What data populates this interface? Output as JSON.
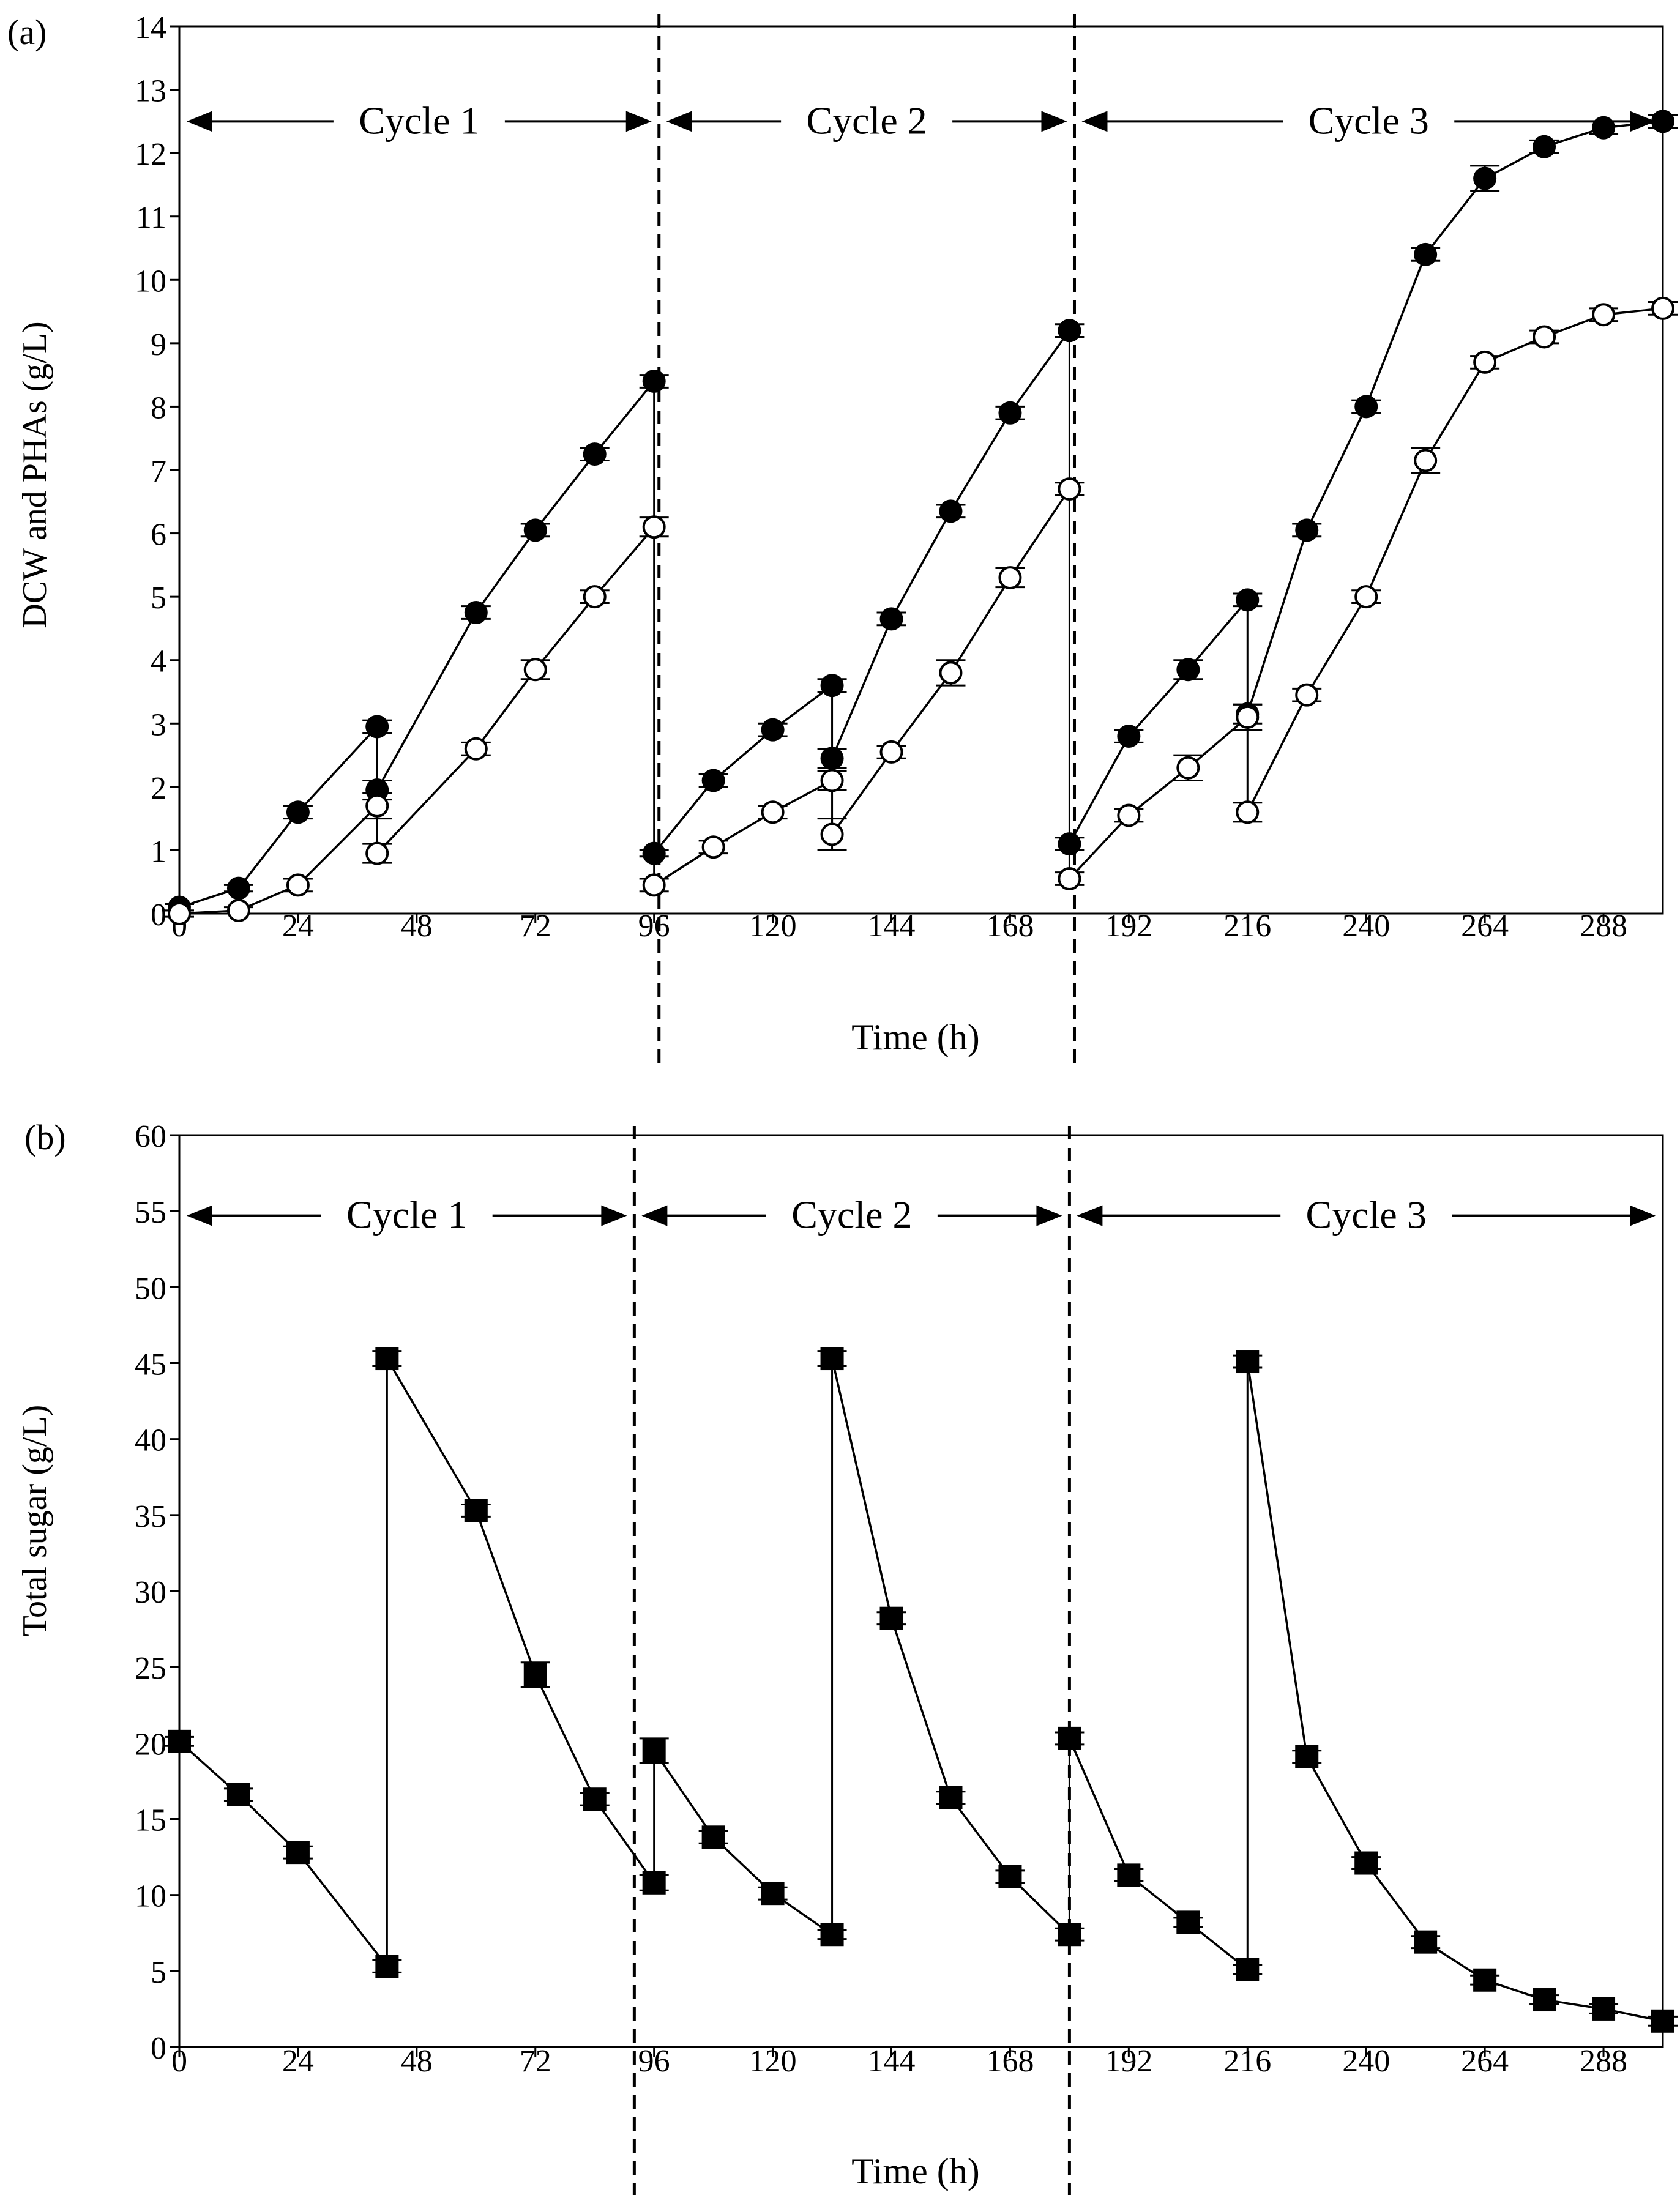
{
  "chart_data": [
    {
      "panel_label": "(a)",
      "type": "line",
      "xlabel": "Time (h)",
      "ylabel": "DCW and PHAs (g/L)",
      "xlim": [
        0,
        300
      ],
      "ylim": [
        0,
        14
      ],
      "xticks": [
        0,
        24,
        48,
        72,
        96,
        120,
        144,
        168,
        192,
        216,
        240,
        264,
        288
      ],
      "yticks": [
        0,
        1,
        2,
        3,
        4,
        5,
        6,
        7,
        8,
        9,
        10,
        11,
        12,
        13,
        14
      ],
      "cycle_dividers": [
        97,
        181
      ],
      "cycles": [
        {
          "label": "Cycle 1",
          "start": 0,
          "end": 97,
          "y": 12.5
        },
        {
          "label": "Cycle 2",
          "start": 97,
          "end": 181,
          "y": 12.5
        },
        {
          "label": "Cycle 3",
          "start": 181,
          "end": 300,
          "y": 12.5
        }
      ],
      "series": [
        {
          "name": "DCW",
          "marker": "filled-circle",
          "x": [
            0,
            12,
            24,
            40,
            40,
            60,
            72,
            84,
            96,
            96,
            108,
            120,
            132,
            132,
            144,
            156,
            168,
            180,
            180,
            192,
            204,
            216,
            216,
            228,
            240,
            252,
            264,
            276,
            288,
            300
          ],
          "y": [
            0.1,
            0.4,
            1.6,
            2.95,
            1.95,
            4.75,
            6.05,
            7.25,
            8.4,
            0.95,
            2.1,
            2.9,
            3.6,
            2.45,
            4.65,
            6.35,
            7.9,
            9.2,
            1.1,
            2.8,
            3.85,
            4.95,
            3.15,
            6.05,
            8.0,
            10.4,
            11.6,
            12.1,
            12.4,
            12.5
          ],
          "err": [
            0.05,
            0.05,
            0.1,
            0.1,
            0.15,
            0.1,
            0.1,
            0.1,
            0.1,
            0.05,
            0.1,
            0.1,
            0.1,
            0.15,
            0.1,
            0.1,
            0.1,
            0.1,
            0.1,
            0.1,
            0.15,
            0.1,
            0.15,
            0.1,
            0.1,
            0.1,
            0.2,
            0.1,
            0.1,
            0.1
          ]
        },
        {
          "name": "PHAs",
          "marker": "open-circle",
          "x": [
            0,
            12,
            24,
            40,
            40,
            60,
            72,
            84,
            96,
            96,
            108,
            120,
            132,
            132,
            144,
            156,
            168,
            180,
            180,
            192,
            204,
            216,
            216,
            228,
            240,
            252,
            264,
            276,
            288,
            300
          ],
          "y": [
            0.0,
            0.05,
            0.45,
            1.7,
            0.95,
            2.6,
            3.85,
            5.0,
            6.1,
            0.45,
            1.05,
            1.6,
            2.1,
            1.25,
            2.55,
            3.8,
            5.3,
            6.7,
            0.55,
            1.55,
            2.3,
            3.1,
            1.6,
            3.45,
            5.0,
            7.15,
            8.7,
            9.1,
            9.45,
            9.55
          ],
          "err": [
            0.05,
            0.05,
            0.1,
            0.2,
            0.15,
            0.1,
            0.15,
            0.1,
            0.15,
            0.1,
            0.1,
            0.1,
            0.15,
            0.25,
            0.1,
            0.2,
            0.15,
            0.1,
            0.1,
            0.1,
            0.2,
            0.2,
            0.15,
            0.1,
            0.1,
            0.2,
            0.1,
            0.1,
            0.1,
            0.1
          ]
        }
      ],
      "connectors": [
        {
          "x": 40,
          "y_from": 0.95,
          "y_to": 2.95
        },
        {
          "x": 96,
          "y_from": 0.45,
          "y_to": 8.4
        },
        {
          "x": 132,
          "y_from": 1.25,
          "y_to": 3.6
        },
        {
          "x": 180,
          "y_from": 0.55,
          "y_to": 9.2
        },
        {
          "x": 216,
          "y_from": 1.6,
          "y_to": 4.95
        }
      ]
    },
    {
      "panel_label": "(b)",
      "type": "line",
      "xlabel": "Time (h)",
      "ylabel": "Total sugar (g/L)",
      "xlim": [
        0,
        300
      ],
      "ylim": [
        0,
        60
      ],
      "xticks": [
        0,
        24,
        48,
        72,
        96,
        120,
        144,
        168,
        192,
        216,
        240,
        264,
        288
      ],
      "yticks": [
        0,
        5,
        10,
        15,
        20,
        25,
        30,
        35,
        40,
        45,
        50,
        55,
        60
      ],
      "cycle_dividers": [
        92,
        180
      ],
      "cycles": [
        {
          "label": "Cycle 1",
          "start": 0,
          "end": 92,
          "y": 54.7
        },
        {
          "label": "Cycle 2",
          "start": 92,
          "end": 180,
          "y": 54.7
        },
        {
          "label": "Cycle 3",
          "start": 180,
          "end": 300,
          "y": 54.7
        }
      ],
      "series": [
        {
          "name": "Total sugar",
          "marker": "filled-square",
          "x": [
            0,
            12,
            24,
            42,
            42,
            60,
            72,
            84,
            96,
            96,
            108,
            120,
            132,
            132,
            144,
            156,
            168,
            180,
            180,
            192,
            204,
            216,
            216,
            228,
            240,
            252,
            264,
            276,
            288,
            300
          ],
          "y": [
            20.1,
            16.6,
            12.8,
            5.3,
            45.3,
            35.3,
            24.5,
            16.3,
            10.8,
            19.5,
            13.8,
            10.1,
            7.4,
            45.3,
            28.2,
            16.4,
            11.2,
            7.4,
            20.3,
            11.3,
            8.2,
            5.1,
            45.1,
            19.1,
            12.1,
            6.9,
            4.4,
            3.1,
            2.5,
            1.7
          ],
          "err": [
            0.3,
            0.4,
            0.4,
            0.4,
            0.5,
            0.4,
            0.8,
            0.4,
            0.5,
            0.8,
            0.4,
            0.4,
            0.3,
            0.5,
            0.4,
            0.4,
            0.4,
            0.4,
            0.4,
            0.4,
            0.3,
            0.3,
            0.4,
            0.4,
            0.4,
            0.4,
            0.3,
            0.3,
            0.3,
            0.3
          ]
        }
      ],
      "connectors": [
        {
          "x": 42,
          "y_from": 5.3,
          "y_to": 45.3
        },
        {
          "x": 96,
          "y_from": 10.8,
          "y_to": 19.5
        },
        {
          "x": 132,
          "y_from": 7.4,
          "y_to": 45.3
        },
        {
          "x": 180,
          "y_from": 7.4,
          "y_to": 20.3
        },
        {
          "x": 216,
          "y_from": 5.1,
          "y_to": 45.1
        }
      ]
    }
  ]
}
